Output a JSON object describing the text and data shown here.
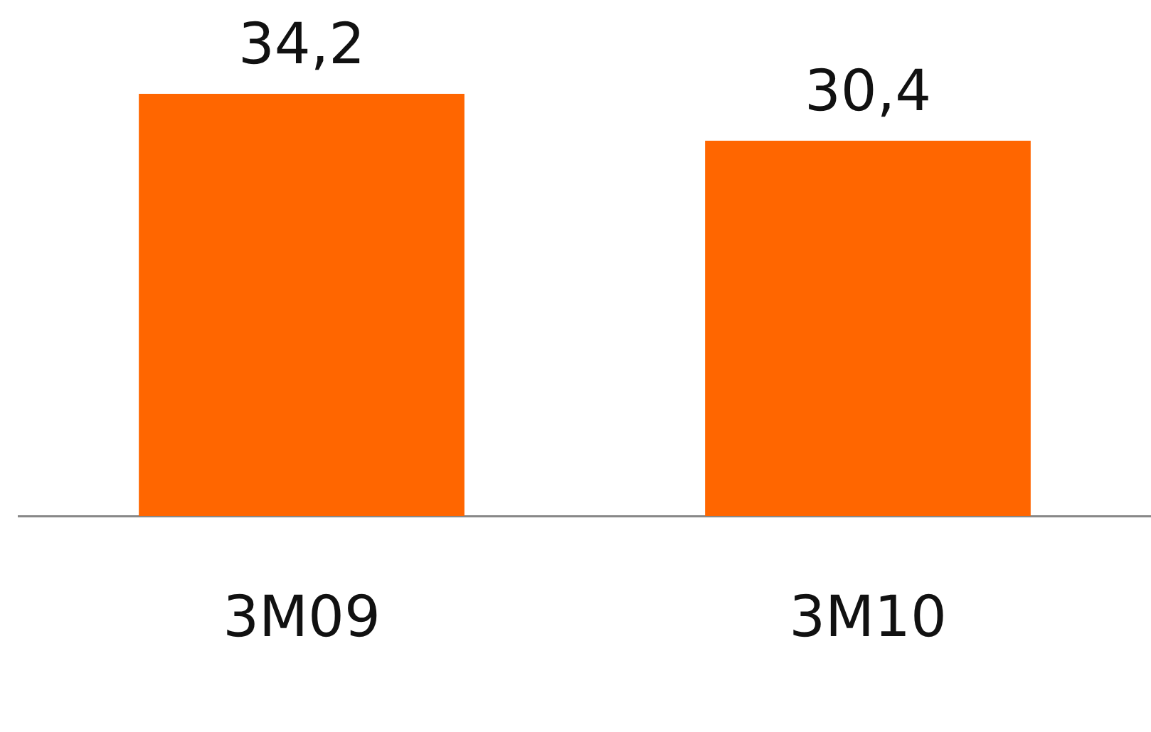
{
  "chart_data": {
    "type": "bar",
    "categories": [
      "3M09",
      "3M10"
    ],
    "values": [
      34.2,
      30.4
    ],
    "color": "#ff6600",
    "value_labels": [
      "34,2",
      "30,4"
    ],
    "grid": false,
    "legend": false
  }
}
